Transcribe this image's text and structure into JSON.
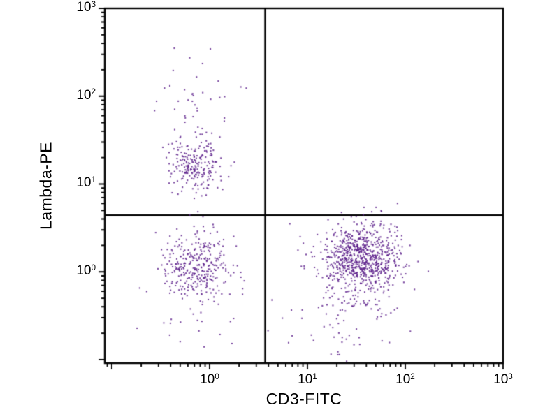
{
  "figure": {
    "background": "#ffffff"
  },
  "chart_data": {
    "type": "scatter",
    "title": "",
    "xlabel": "CD3-FITC",
    "ylabel": "Lambda-PE",
    "x_scale": "log",
    "y_scale": "log",
    "x_range_exp": [
      -1.071,
      3
    ],
    "y_range_exp": [
      -1.04,
      3
    ],
    "x_tick_exponents": [
      0,
      1,
      2,
      3
    ],
    "y_tick_exponents": [
      0,
      1,
      2,
      3
    ],
    "tick_base": "10",
    "grid": false,
    "legend": "none",
    "point_color": "#5b1d8a",
    "axis_color": "#000000",
    "quadrant_gate": {
      "x_value": 3.7,
      "y_value": 4.4
    },
    "clusters": [
      {
        "name": "lambda-positive-cd3-negative",
        "count": 230,
        "x_log10_mean": -0.14,
        "x_log10_sd": 0.13,
        "y_log10_mean": 1.22,
        "y_log10_sd": 0.17
      },
      {
        "name": "lambda-high-scatter",
        "count": 35,
        "x_log10_mean": -0.12,
        "x_log10_sd": 0.22,
        "y_log10_mean": 2.0,
        "y_log10_sd": 0.22
      },
      {
        "name": "double-negative-left",
        "count": 330,
        "x_log10_mean": -0.14,
        "x_log10_sd": 0.16,
        "y_log10_mean": 0.08,
        "y_log10_sd": 0.2
      },
      {
        "name": "left-low-tail",
        "count": 25,
        "x_log10_mean": -0.2,
        "x_log10_sd": 0.25,
        "y_log10_mean": -0.45,
        "y_log10_sd": 0.25
      },
      {
        "name": "cd3-positive-t-cells",
        "count": 750,
        "x_log10_mean": 1.56,
        "x_log10_sd": 0.2,
        "y_log10_mean": 0.17,
        "y_log10_sd": 0.18
      },
      {
        "name": "cd3-positive-low-tail",
        "count": 130,
        "x_log10_mean": 1.42,
        "x_log10_sd": 0.28,
        "y_log10_mean": -0.25,
        "y_log10_sd": 0.3
      },
      {
        "name": "cd3-positive-upper-strays",
        "count": 4,
        "x_log10_mean": 1.6,
        "x_log10_sd": 0.15,
        "y_log10_mean": 0.78,
        "y_log10_sd": 0.1
      }
    ]
  }
}
